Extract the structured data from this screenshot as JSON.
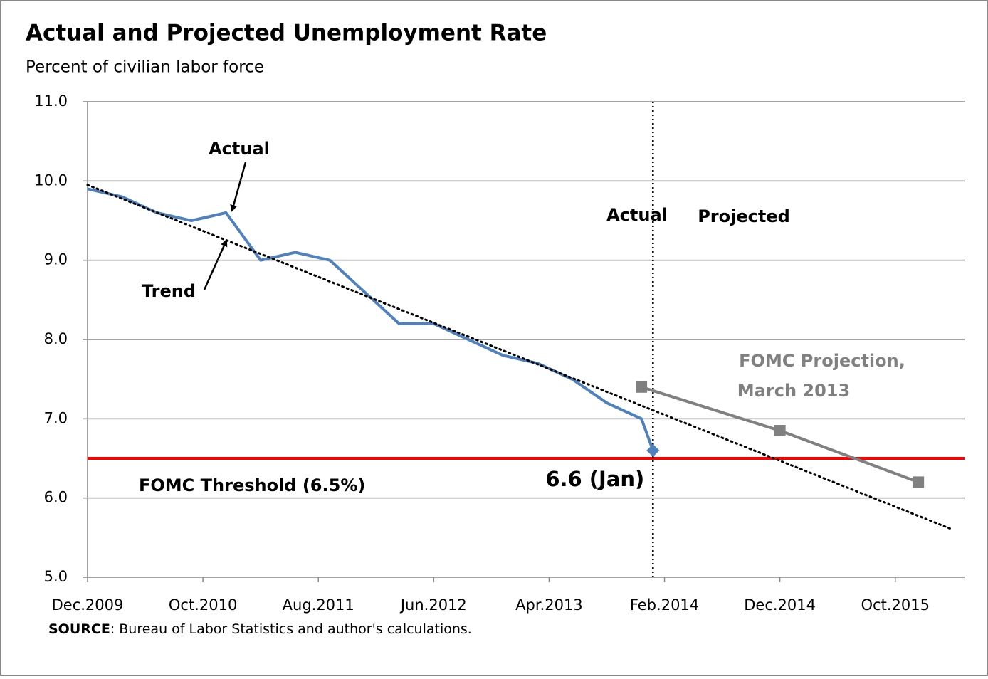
{
  "chart_data": {
    "type": "line",
    "title": "Actual and Projected Unemployment Rate",
    "subtitle": "Percent of civilian labor force",
    "xlim": [
      "2009-12",
      "2016-04"
    ],
    "xticks": [
      {
        "value": "2009-12",
        "label": "Dec.2009"
      },
      {
        "value": "2010-10",
        "label": "Oct.2010"
      },
      {
        "value": "2011-08",
        "label": "Aug.2011"
      },
      {
        "value": "2012-06",
        "label": "Jun.2012"
      },
      {
        "value": "2013-04",
        "label": "Apr.2013"
      },
      {
        "value": "2014-02",
        "label": "Feb.2014"
      },
      {
        "value": "2014-12",
        "label": "Dec.2014"
      },
      {
        "value": "2015-10",
        "label": "Oct.2015"
      }
    ],
    "ylim": [
      5,
      11
    ],
    "yticks": [
      {
        "value": 5,
        "label": "5.0"
      },
      {
        "value": 6,
        "label": "6.0"
      },
      {
        "value": 7,
        "label": "7.0"
      },
      {
        "value": 8,
        "label": "8.0"
      },
      {
        "value": 9,
        "label": "9.0"
      },
      {
        "value": 10,
        "label": "10.0"
      },
      {
        "value": 11,
        "label": "11.0"
      }
    ],
    "grid": true,
    "legend": false,
    "series": [
      {
        "color": "#4f81bd",
        "style": "solid",
        "x": [
          "2009-12",
          "2010-03",
          "2010-06",
          "2010-09",
          "2010-12",
          "2011-03",
          "2011-06",
          "2011-09",
          "2011-12",
          "2012-03",
          "2012-06",
          "2012-09",
          "2012-12",
          "2013-03",
          "2013-06",
          "2013-09",
          "2013-12",
          "2014-01"
        ],
        "values": [
          9.9,
          9.8,
          9.6,
          9.5,
          9.6,
          9.0,
          9.1,
          9.0,
          8.6,
          8.2,
          8.2,
          8.0,
          7.8,
          7.7,
          7.5,
          7.2,
          7.0,
          6.6
        ],
        "value_labels": [
          null,
          null,
          null,
          null,
          null,
          null,
          null,
          null,
          null,
          null,
          null,
          null,
          null,
          null,
          null,
          null,
          null,
          "6.6 (Jan)"
        ],
        "marker_last": "diamond"
      },
      {
        "color": "#000000",
        "style": "dotted",
        "x": [
          "2009-12",
          "2016-03"
        ],
        "values": [
          9.95,
          5.6
        ]
      },
      {
        "color": "#808080",
        "style": "solid",
        "marker": "square",
        "x": [
          "2013-12",
          "2014-12",
          "2015-12"
        ],
        "values": [
          7.4,
          6.85,
          6.2
        ]
      }
    ],
    "threshold": {
      "value": 6.5,
      "label": "FOMC Threshold (6.5%)",
      "color": "#ff0000"
    },
    "divider_x": "2014-01",
    "annotations": [
      "Actual",
      "Trend",
      "Actual",
      "Projected",
      "FOMC Projection,",
      "March 2013"
    ],
    "source_label": "SOURCE",
    "source_text": ":  Bureau of Labor Statistics and author's calculations."
  }
}
